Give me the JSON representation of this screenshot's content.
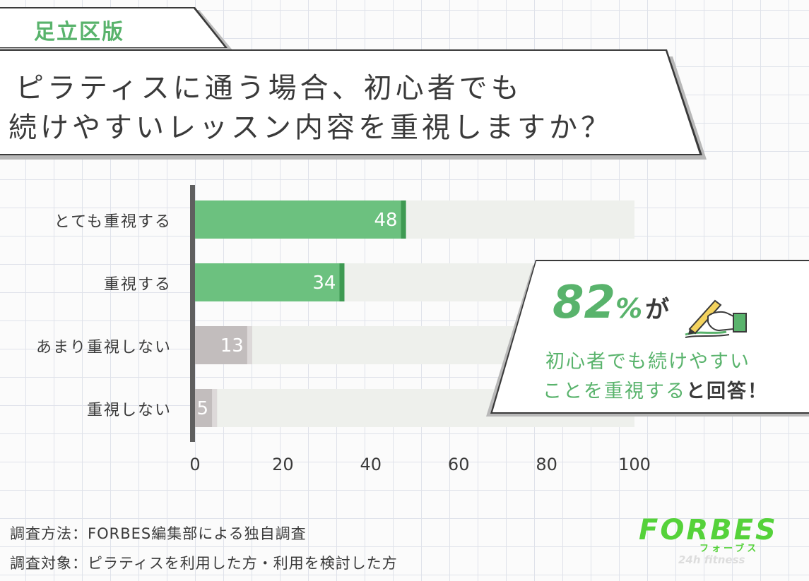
{
  "tag": "足立区版",
  "title": {
    "line1": "ピラティスに通う場合、初心者でも",
    "line2": "続けやすいレッスン内容を重視しますか？"
  },
  "chart_data": {
    "type": "bar",
    "orientation": "horizontal",
    "categories": [
      "とても重視する",
      "重視する",
      "あまり重視しない",
      "重視しない"
    ],
    "values": [
      48,
      34,
      13,
      5
    ],
    "xlim": [
      0,
      100
    ],
    "xticks": [
      "0",
      "20",
      "40",
      "60",
      "80",
      "100"
    ],
    "colors": [
      "#6cc17f",
      "#6cc17f",
      "#c2bdbd",
      "#c2bdbd"
    ],
    "accent_colors": [
      "#3e9a52",
      "#3e9a52",
      "#ddd9d9",
      "#ddd9d9"
    ],
    "track_color": "#eef0ec",
    "grid": false
  },
  "callout": {
    "number": "82",
    "percent": "%",
    "particle": "が",
    "line1": "初心者でも続けやすい",
    "line2": "ことを重視する",
    "suffix": "と回答！",
    "pen_icon": "pen-writing-icon"
  },
  "footer": {
    "method": "調査方法：FORBES編集部による独自調査",
    "target": "調査対象：ピラティスを利用した方・利用を検討した方"
  },
  "logo": {
    "main": "FORBES",
    "kana": "フォーブス",
    "sub": "24h fitness"
  }
}
